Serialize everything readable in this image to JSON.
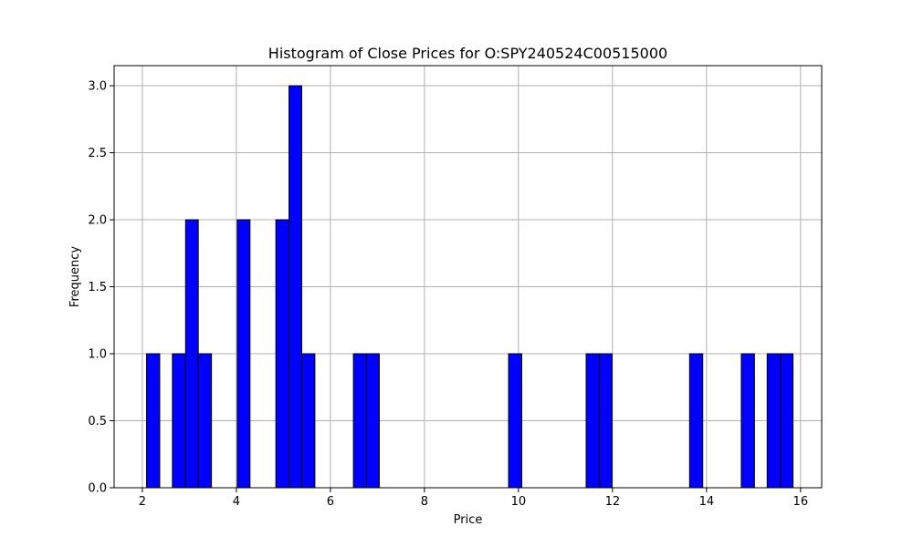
{
  "chart_data": {
    "type": "bar",
    "title": "Histogram of Close Prices for O:SPY240524C00515000",
    "xlabel": "Price",
    "ylabel": "Frequency",
    "xlim": [
      1.4,
      16.45
    ],
    "ylim": [
      0,
      3.15
    ],
    "xticks": [
      2,
      4,
      6,
      8,
      10,
      12,
      14,
      16
    ],
    "xtick_labels": [
      "2",
      "4",
      "6",
      "8",
      "10",
      "12",
      "14",
      "16"
    ],
    "yticks": [
      0,
      0.5,
      1.0,
      1.5,
      2.0,
      2.5,
      3.0
    ],
    "ytick_labels": [
      "0.0",
      "0.5",
      "1.0",
      "1.5",
      "2.0",
      "2.5",
      "3.0"
    ],
    "grid": true,
    "bar_color": "#0000ff",
    "edge_color": "#000000",
    "bins": [
      {
        "x_start": 2.09,
        "x_end": 2.37,
        "count": 1
      },
      {
        "x_start": 2.64,
        "x_end": 2.92,
        "count": 1
      },
      {
        "x_start": 2.92,
        "x_end": 3.19,
        "count": 2
      },
      {
        "x_start": 3.19,
        "x_end": 3.47,
        "count": 1
      },
      {
        "x_start": 4.02,
        "x_end": 4.29,
        "count": 2
      },
      {
        "x_start": 4.84,
        "x_end": 5.12,
        "count": 2
      },
      {
        "x_start": 5.12,
        "x_end": 5.39,
        "count": 3
      },
      {
        "x_start": 5.39,
        "x_end": 5.67,
        "count": 1
      },
      {
        "x_start": 6.49,
        "x_end": 6.77,
        "count": 1
      },
      {
        "x_start": 6.77,
        "x_end": 7.04,
        "count": 1
      },
      {
        "x_start": 9.79,
        "x_end": 10.07,
        "count": 1
      },
      {
        "x_start": 11.44,
        "x_end": 11.72,
        "count": 1
      },
      {
        "x_start": 11.72,
        "x_end": 11.99,
        "count": 1
      },
      {
        "x_start": 13.64,
        "x_end": 13.92,
        "count": 1
      },
      {
        "x_start": 14.74,
        "x_end": 15.02,
        "count": 1
      },
      {
        "x_start": 15.29,
        "x_end": 15.57,
        "count": 1
      },
      {
        "x_start": 15.57,
        "x_end": 15.84,
        "count": 1
      }
    ]
  }
}
